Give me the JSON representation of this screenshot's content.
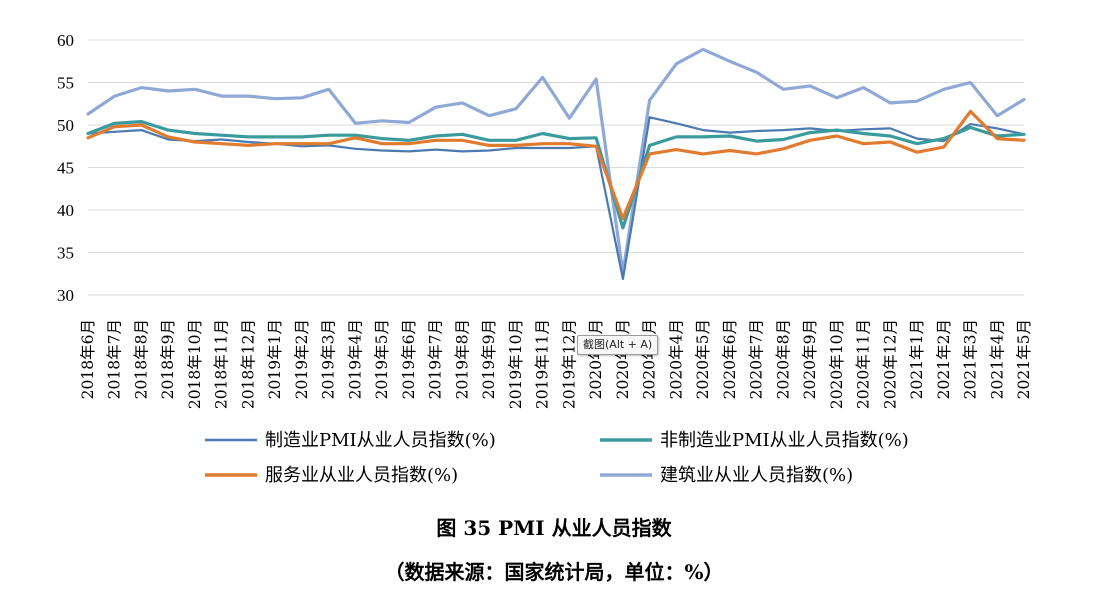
{
  "chart_data": {
    "type": "line",
    "title": "图 35 PMI 从业人员指数",
    "subtitle": "（数据来源：国家统计局，单位：%）",
    "xlabel": "",
    "ylabel": "",
    "ylim": [
      30,
      60
    ],
    "yticks": [
      30,
      35,
      40,
      45,
      50,
      55,
      60
    ],
    "grid": true,
    "legend": "bottom",
    "categories": [
      "2018年6月",
      "2018年7月",
      "2018年8月",
      "2018年9月",
      "2018年10月",
      "2018年11月",
      "2018年12月",
      "2019年1月",
      "2019年2月",
      "2019年3月",
      "2019年4月",
      "2019年5月",
      "2019年6月",
      "2019年7月",
      "2019年8月",
      "2019年9月",
      "2019年10月",
      "2019年11月",
      "2019年12月",
      "2020年1月",
      "2020年2月",
      "2020年3月",
      "2020年4月",
      "2020年5月",
      "2020年6月",
      "2020年7月",
      "2020年8月",
      "2020年9月",
      "2020年10月",
      "2020年11月",
      "2020年12月",
      "2021年1月",
      "2021年2月",
      "2021年3月",
      "2021年4月",
      "2021年5月"
    ],
    "series": [
      {
        "name": "制造业PMI从业人员指数(%)",
        "color": "#4a7ab0",
        "values": [
          49.0,
          49.2,
          49.4,
          48.3,
          48.1,
          48.3,
          48.0,
          47.8,
          47.5,
          47.6,
          47.2,
          47.0,
          46.9,
          47.1,
          46.9,
          47.0,
          47.3,
          47.3,
          47.3,
          47.5,
          31.9,
          50.9,
          50.2,
          49.4,
          49.1,
          49.3,
          49.4,
          49.6,
          49.3,
          49.5,
          49.6,
          48.4,
          48.1,
          50.1,
          49.6,
          48.9
        ]
      },
      {
        "name": "非制造业PMI从业人员指数(%)",
        "color": "#3a9b9d",
        "values": [
          49.0,
          50.2,
          50.4,
          49.4,
          49.0,
          48.8,
          48.6,
          48.6,
          48.6,
          48.8,
          48.8,
          48.4,
          48.2,
          48.7,
          48.9,
          48.2,
          48.2,
          49.0,
          48.4,
          48.5,
          37.9,
          47.6,
          48.6,
          48.6,
          48.7,
          48.1,
          48.3,
          49.1,
          49.4,
          49.0,
          48.7,
          47.8,
          48.4,
          49.7,
          48.7,
          48.9
        ]
      },
      {
        "name": "服务业从业人员指数(%)",
        "color": "#e07b30",
        "values": [
          48.5,
          49.8,
          50.0,
          48.6,
          48.0,
          47.8,
          47.6,
          47.8,
          47.8,
          47.8,
          48.5,
          47.8,
          47.8,
          48.2,
          48.2,
          47.6,
          47.6,
          47.8,
          47.8,
          47.5,
          39.0,
          46.6,
          47.1,
          46.6,
          47.0,
          46.6,
          47.2,
          48.2,
          48.7,
          47.8,
          48.0,
          46.8,
          47.4,
          51.6,
          48.4,
          48.2
        ]
      },
      {
        "name": "建筑业从业人员指数(%)",
        "color": "#8fa9d6",
        "values": [
          51.3,
          53.4,
          54.4,
          54.0,
          54.2,
          53.4,
          53.4,
          53.1,
          53.2,
          54.2,
          50.2,
          50.5,
          50.3,
          52.1,
          52.6,
          51.1,
          51.9,
          55.6,
          50.8,
          55.4,
          32.6,
          52.9,
          57.2,
          58.9,
          57.5,
          56.2,
          54.2,
          54.6,
          53.2,
          54.4,
          52.6,
          52.8,
          54.2,
          55.0,
          51.1,
          53.0
        ]
      }
    ]
  },
  "tooltip": {
    "text": "截图(Alt + A)"
  }
}
